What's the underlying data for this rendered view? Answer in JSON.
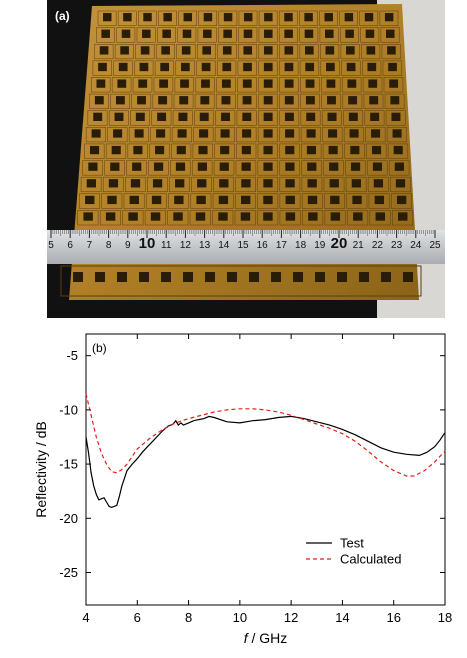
{
  "photo": {
    "label": "(a)",
    "ruler_numbers": [
      "5",
      "6",
      "7",
      "8",
      "9",
      "10",
      "11",
      "12",
      "13",
      "14",
      "15",
      "16",
      "17",
      "18",
      "19",
      "20",
      "21",
      "22",
      "23",
      "24",
      "25"
    ],
    "colors": {
      "substrate": "#b8862a",
      "substrate_dark": "#6b4a12",
      "ruler": "#c9ccce",
      "background": "#101010"
    }
  },
  "chart_data": {
    "type": "line",
    "panel_label": "(b)",
    "xlabel_italic": "f",
    "xlabel_rest": " / GHz",
    "ylabel": "Reflectivity / dB",
    "xlim": [
      4,
      18
    ],
    "ylim": [
      -28,
      -3
    ],
    "xticks": [
      4,
      6,
      8,
      10,
      12,
      14,
      16,
      18
    ],
    "yticks": [
      -5,
      -10,
      -15,
      -20,
      -25
    ],
    "grid": false,
    "legend_position": "bottom-right",
    "series": [
      {
        "name": "Test",
        "color": "#000000",
        "dash": "solid",
        "x": [
          4.0,
          4.1,
          4.2,
          4.3,
          4.4,
          4.5,
          4.6,
          4.7,
          4.8,
          4.9,
          5.0,
          5.1,
          5.2,
          5.3,
          5.4,
          5.5,
          5.6,
          5.8,
          6.0,
          6.2,
          6.4,
          6.6,
          6.8,
          7.0,
          7.2,
          7.4,
          7.5,
          7.6,
          7.7,
          7.8,
          8.0,
          8.2,
          8.4,
          8.6,
          8.8,
          9.0,
          9.5,
          10.0,
          10.5,
          11.0,
          11.5,
          12.0,
          12.5,
          13.0,
          13.5,
          14.0,
          14.5,
          15.0,
          15.5,
          16.0,
          16.5,
          17.0,
          17.3,
          17.6,
          17.8,
          18.0
        ],
        "y": [
          -12.5,
          -14.0,
          -15.8,
          -17.0,
          -17.8,
          -18.3,
          -18.2,
          -18.1,
          -18.5,
          -18.9,
          -19.0,
          -18.9,
          -18.8,
          -18.0,
          -17.0,
          -16.3,
          -15.6,
          -15.0,
          -14.5,
          -13.9,
          -13.4,
          -12.9,
          -12.4,
          -11.9,
          -11.5,
          -11.3,
          -11.0,
          -11.4,
          -11.2,
          -11.4,
          -11.2,
          -11.0,
          -10.9,
          -10.8,
          -10.6,
          -10.7,
          -11.1,
          -11.2,
          -11.0,
          -10.9,
          -10.7,
          -10.6,
          -10.8,
          -11.1,
          -11.4,
          -11.8,
          -12.3,
          -12.9,
          -13.5,
          -13.9,
          -14.1,
          -14.2,
          -13.9,
          -13.4,
          -12.8,
          -12.1
        ]
      },
      {
        "name": "Calculated",
        "color": "#e0201c",
        "dash": "dashed",
        "x": [
          4.0,
          4.2,
          4.4,
          4.6,
          4.8,
          5.0,
          5.2,
          5.4,
          5.6,
          5.8,
          6.0,
          6.5,
          7.0,
          7.5,
          8.0,
          8.5,
          9.0,
          9.5,
          10.0,
          10.5,
          11.0,
          11.5,
          12.0,
          12.5,
          13.0,
          13.5,
          14.0,
          14.5,
          15.0,
          15.5,
          16.0,
          16.5,
          16.8,
          17.2,
          17.6,
          18.0
        ],
        "y": [
          -8.5,
          -10.5,
          -12.5,
          -14.0,
          -15.0,
          -15.7,
          -15.8,
          -15.5,
          -15.0,
          -14.3,
          -13.6,
          -12.6,
          -11.8,
          -11.2,
          -10.8,
          -10.5,
          -10.2,
          -10.0,
          -9.9,
          -9.9,
          -10.0,
          -10.2,
          -10.5,
          -10.9,
          -11.3,
          -11.7,
          -12.2,
          -12.9,
          -13.8,
          -14.8,
          -15.6,
          -16.1,
          -16.1,
          -15.6,
          -14.8,
          -13.8
        ]
      }
    ]
  }
}
